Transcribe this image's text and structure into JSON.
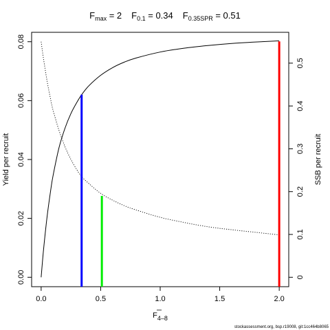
{
  "title": {
    "fmax": {
      "sym": "F",
      "sub": "max",
      "eq": " = 2"
    },
    "f01": {
      "sym": "F",
      "sub": "0.1",
      "eq": " = 0.34"
    },
    "f035": {
      "sym": "F",
      "sub": "0.35SPR",
      "eq": " = 0.51"
    }
  },
  "footer": "stockassessment.org, bsp.r19008, git:1cc464b8065",
  "chart_data": {
    "type": "line",
    "xlabel": {
      "sym": "F",
      "sub": "4–8"
    },
    "ylabel_left": "Yield per recruit",
    "ylabel_right": "SSB per recruit",
    "xlim": [
      -0.08,
      2.08
    ],
    "ylim_left": [
      -0.0032,
      0.0832
    ],
    "ylim_right": [
      -0.022,
      0.572
    ],
    "x_ticks": [
      0,
      0.5,
      1,
      1.5,
      2
    ],
    "x_tick_labels": [
      "0.0",
      "0.5",
      "1.0",
      "1.5",
      "2.0"
    ],
    "y_ticks_left": [
      0,
      0.02,
      0.04,
      0.06,
      0.08
    ],
    "y_tick_labels_left": [
      "0.00",
      "0.02",
      "0.04",
      "0.06",
      "0.08"
    ],
    "y_ticks_right": [
      0,
      0.1,
      0.2,
      0.3,
      0.4,
      0.5
    ],
    "y_tick_labels_right": [
      "0",
      "0.1",
      "0.2",
      "0.3",
      "0.4",
      "0.5"
    ],
    "series": [
      {
        "style": "solid",
        "axis": "left",
        "x": [
          0,
          0.02,
          0.05,
          0.08,
          0.1,
          0.15,
          0.2,
          0.25,
          0.3,
          0.34,
          0.4,
          0.5,
          0.6,
          0.7,
          0.8,
          1.0,
          1.2,
          1.4,
          1.6,
          1.8,
          2.0
        ],
        "y": [
          0,
          0.0093,
          0.0206,
          0.0295,
          0.0345,
          0.044,
          0.0506,
          0.0556,
          0.0594,
          0.062,
          0.065,
          0.0686,
          0.0712,
          0.0731,
          0.0745,
          0.0765,
          0.0778,
          0.0787,
          0.0794,
          0.0799,
          0.0803
        ]
      },
      {
        "style": "dotted",
        "axis": "right",
        "x": [
          0,
          0.02,
          0.05,
          0.08,
          0.1,
          0.15,
          0.2,
          0.25,
          0.3,
          0.34,
          0.4,
          0.5,
          0.6,
          0.7,
          0.8,
          1.0,
          1.2,
          1.4,
          1.6,
          1.8,
          2.0
        ],
        "y": [
          0.55,
          0.51,
          0.458,
          0.415,
          0.39,
          0.343,
          0.305,
          0.275,
          0.251,
          0.235,
          0.219,
          0.196,
          0.18,
          0.167,
          0.157,
          0.14,
          0.128,
          0.118,
          0.111,
          0.105,
          0.099
        ]
      }
    ],
    "reference_lines": [
      {
        "x": 0.34,
        "y": 0.062,
        "color": "#0000ff",
        "axis": "left"
      },
      {
        "x": 0.51,
        "y": 0.19,
        "color": "#00ee00",
        "axis": "right"
      },
      {
        "x": 2.0,
        "y": 0.0801,
        "color": "#ff0000",
        "axis": "left"
      }
    ],
    "grid": false,
    "legend": "none"
  }
}
